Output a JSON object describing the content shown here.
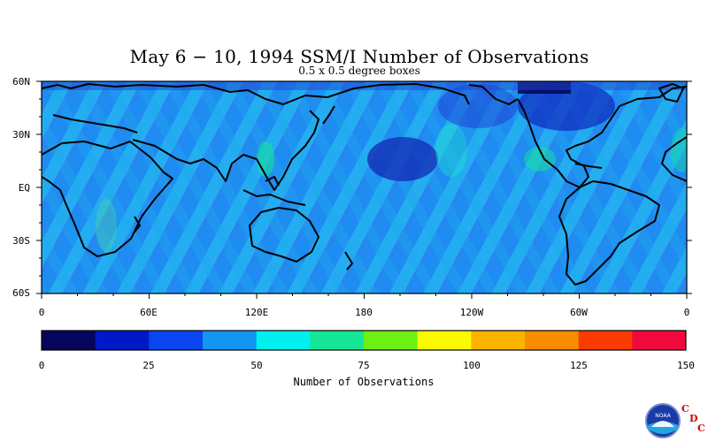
{
  "title": "May 6 − 10, 1994 SSM/I Number of Observations",
  "subtitle": "0.5 x 0.5 degree boxes",
  "map": {
    "lat_labels": [
      "60N",
      "30N",
      "EQ",
      "30S",
      "60S"
    ],
    "lon_labels": [
      "0",
      "60E",
      "120E",
      "180",
      "120W",
      "60W",
      "0"
    ]
  },
  "colorbar": {
    "title": "Number of Observations",
    "tick_labels": [
      "0",
      "25",
      "50",
      "75",
      "100",
      "125",
      "150"
    ],
    "colors": [
      "#05055e",
      "#0019c8",
      "#0a46f0",
      "#1496f0",
      "#00f0f0",
      "#14e696",
      "#6ef014",
      "#fafa00",
      "#fab400",
      "#fa8c00",
      "#fa3c00",
      "#f00a3c"
    ]
  },
  "logo": {
    "text": "NOAA",
    "org_letters": [
      "C",
      "D",
      "C"
    ]
  }
}
